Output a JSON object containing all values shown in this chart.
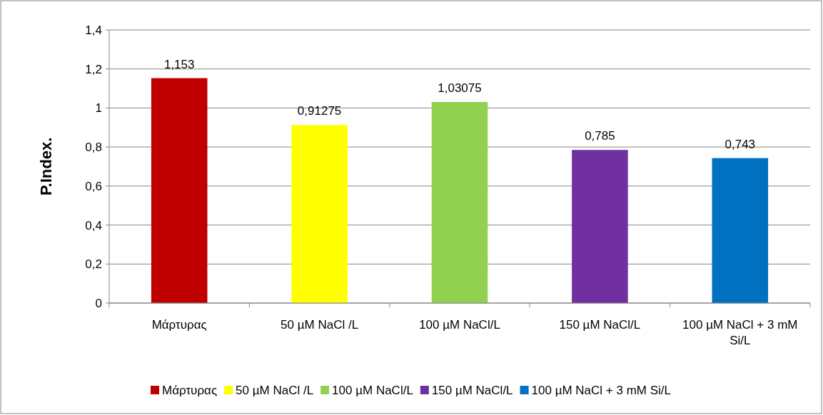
{
  "chart_data": {
    "type": "bar",
    "ylabel": "P.Index.",
    "categories": [
      "Μάρτυρας",
      "50 µM NaCl /L",
      "100 µM NaCl/L",
      "150 µM NaCl/L",
      "100 µM NaCl + 3 mM Si/L"
    ],
    "series": [
      {
        "name": "Μάρτυρας",
        "color": "#c00000",
        "values": [
          1.153,
          null,
          null,
          null,
          null
        ],
        "value_labels": [
          "1,153",
          null,
          null,
          null,
          null
        ]
      },
      {
        "name": "50 µM NaCl /L",
        "color": "#ffff00",
        "values": [
          null,
          0.91275,
          null,
          null,
          null
        ],
        "value_labels": [
          null,
          "0,91275",
          null,
          null,
          null
        ]
      },
      {
        "name": "100 µM NaCl/L",
        "color": "#92d050",
        "values": [
          null,
          null,
          1.03075,
          null,
          null
        ],
        "value_labels": [
          null,
          null,
          "1,03075",
          null,
          null
        ]
      },
      {
        "name": "150 µM NaCl/L",
        "color": "#7030a0",
        "values": [
          null,
          null,
          null,
          0.785,
          null
        ],
        "value_labels": [
          null,
          null,
          null,
          "0,785",
          null
        ]
      },
      {
        "name": "100 µM NaCl + 3 mM Si/L",
        "color": "#0070c0",
        "values": [
          null,
          null,
          null,
          null,
          0.743
        ],
        "value_labels": [
          null,
          null,
          null,
          null,
          "0,743"
        ]
      }
    ],
    "ylim": [
      0,
      1.4
    ],
    "yticks": [
      {
        "value": 0,
        "label": "0"
      },
      {
        "value": 0.2,
        "label": "0,2"
      },
      {
        "value": 0.4,
        "label": "0,4"
      },
      {
        "value": 0.6,
        "label": "0,6"
      },
      {
        "value": 0.8,
        "label": "0,8"
      },
      {
        "value": 1,
        "label": "1"
      },
      {
        "value": 1.2,
        "label": "1,2"
      },
      {
        "value": 1.4,
        "label": "1,4"
      }
    ],
    "grid": "y",
    "legend": "bottom"
  }
}
